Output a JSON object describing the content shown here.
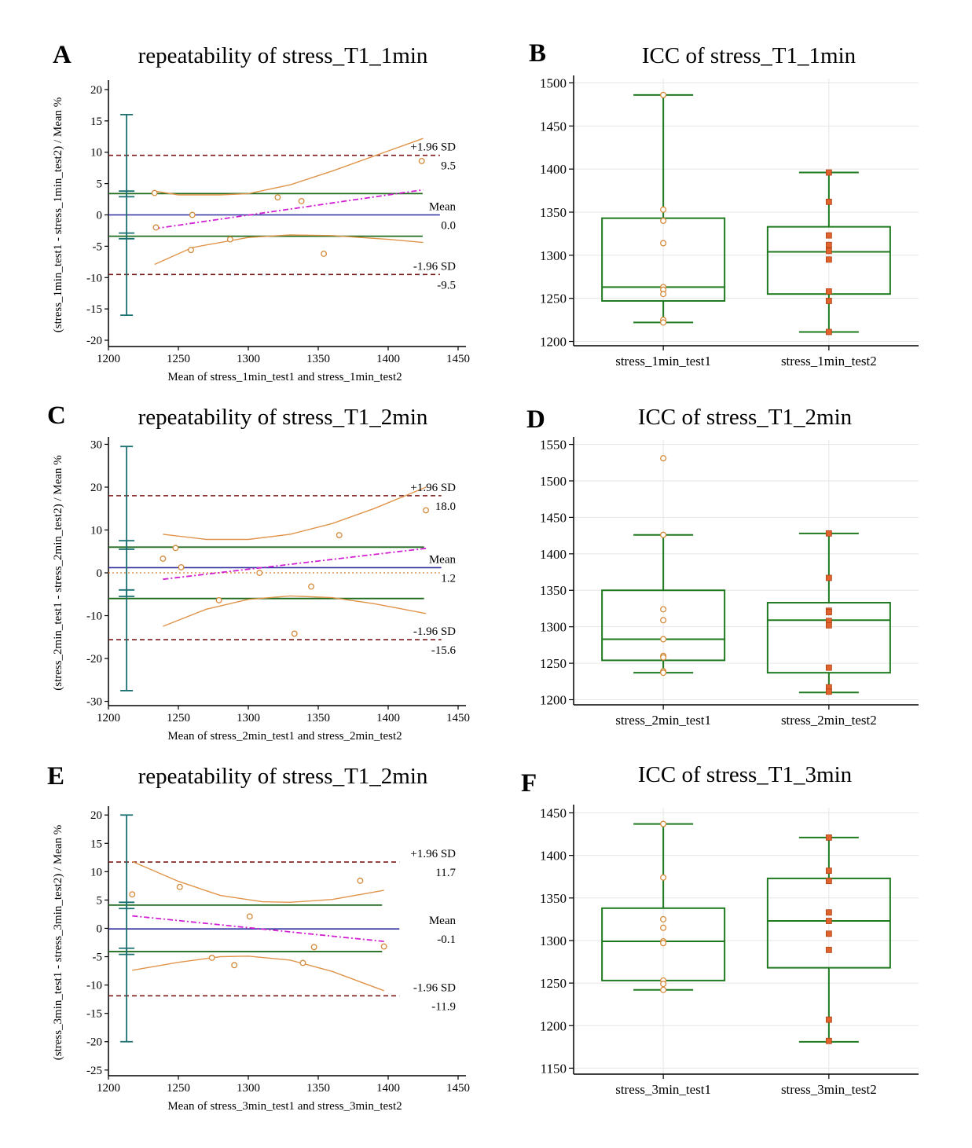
{
  "chart_data": [
    {
      "type": "scatter",
      "subtype": "bland-altman",
      "panel": "A",
      "title": "repeatability of stress_T1_1min",
      "xlabel": "Mean of stress_1min_test1 and stress_1min_test2",
      "ylabel": "(stress_1min_test1 - stress_1min_test2) / Mean %",
      "xlim": [
        1200,
        1450
      ],
      "ylim": [
        -21,
        21
      ],
      "xticks": [
        1200,
        1250,
        1300,
        1350,
        1400,
        1450
      ],
      "yticks": [
        -20,
        -15,
        -10,
        -5,
        0,
        5,
        10,
        15,
        20
      ],
      "points": [
        [
          1233,
          3.5
        ],
        [
          1234,
          -2
        ],
        [
          1260,
          0
        ],
        [
          1259,
          -5.6
        ],
        [
          1287,
          -3.9
        ],
        [
          1321,
          2.8
        ],
        [
          1338,
          2.2
        ],
        [
          1354,
          -6.2
        ],
        [
          1424,
          8.6
        ]
      ],
      "mean": 0.0,
      "upper_loa": 9.5,
      "lower_loa": -9.5,
      "mean_text": "0.0",
      "upper_text": "9.5",
      "lower_text": "-9.5",
      "mean_label": "Mean",
      "upper_label": "+1.96 SD",
      "lower_label": "-1.96 SD",
      "ci_upper": 3.4,
      "ci_lower": -3.4,
      "x_start": 1200,
      "x_end": 1437,
      "trend": [
        [
          1233,
          -2.2
        ],
        [
          1425,
          4
        ]
      ],
      "ci_curve_upper": [
        [
          1233,
          3.8
        ],
        [
          1250,
          3.2
        ],
        [
          1280,
          3.2
        ],
        [
          1300,
          3.4
        ],
        [
          1330,
          4.8
        ],
        [
          1360,
          7
        ],
        [
          1400,
          10.2
        ],
        [
          1425,
          12.2
        ]
      ],
      "ci_curve_lower": [
        [
          1233,
          -7.9
        ],
        [
          1260,
          -5.2
        ],
        [
          1300,
          -3.6
        ],
        [
          1330,
          -3.2
        ],
        [
          1360,
          -3.3
        ],
        [
          1400,
          -3.9
        ],
        [
          1425,
          -4.4
        ]
      ],
      "whisker_x": 1213,
      "error_bars": [
        {
          "x": 1213,
          "lo": -16,
          "hi": 16
        },
        {
          "x": 1213,
          "lo": 2.9,
          "hi": 3.8
        },
        {
          "x": 1213,
          "lo": -3.8,
          "hi": -2.9
        }
      ],
      "show_zero_dotted": false
    },
    {
      "type": "box",
      "panel": "B",
      "title": "ICC of stress_T1_1min",
      "categories": [
        "stress_1min_test1",
        "stress_1min_test2"
      ],
      "ylim": [
        1195,
        1505
      ],
      "yticks": [
        1200,
        1250,
        1300,
        1350,
        1400,
        1450,
        1500
      ],
      "boxes": [
        {
          "whisker_low": 1222,
          "q1": 1247,
          "median": 1263,
          "q3": 1343,
          "whisker_high": 1486,
          "points": [
            1486,
            1353,
            1340,
            1314,
            1263,
            1260,
            1255,
            1225,
            1222
          ],
          "marker": "circle"
        },
        {
          "whisker_low": 1211,
          "q1": 1255,
          "median": 1304,
          "q3": 1333,
          "whisker_high": 1396,
          "points": [
            1396,
            1362,
            1323,
            1312,
            1305,
            1295,
            1258,
            1247,
            1211
          ],
          "marker": "square"
        }
      ]
    },
    {
      "type": "scatter",
      "subtype": "bland-altman",
      "panel": "C",
      "title": "repeatability of stress_T1_2min",
      "xlabel": "Mean of stress_2min_test1 and stress_2min_test2",
      "ylabel": "(stress_2min_test1 - stress_2min_test2) / Mean %",
      "xlim": [
        1200,
        1450
      ],
      "ylim": [
        -31,
        31
      ],
      "xticks": [
        1200,
        1250,
        1300,
        1350,
        1400,
        1450
      ],
      "yticks": [
        -30,
        -20,
        -10,
        0,
        10,
        20,
        30
      ],
      "points": [
        [
          1239,
          3.3
        ],
        [
          1248,
          5.8
        ],
        [
          1252,
          1.3
        ],
        [
          1279,
          -6.4
        ],
        [
          1308,
          0
        ],
        [
          1333,
          -14.2
        ],
        [
          1345,
          -3.2
        ],
        [
          1365,
          8.8
        ],
        [
          1427,
          14.6
        ]
      ],
      "mean": 1.2,
      "upper_loa": 18.0,
      "lower_loa": -15.6,
      "mean_text": "1.2",
      "upper_text": "18.0",
      "lower_text": "-15.6",
      "mean_label": "Mean",
      "upper_label": "+1.96 SD",
      "lower_label": "-1.96 SD",
      "ci_upper": 6.0,
      "ci_lower": -6.0,
      "x_start": 1200,
      "x_end": 1438,
      "trend": [
        [
          1239,
          -1.5
        ],
        [
          1427,
          5.7
        ]
      ],
      "ci_curve_upper": [
        [
          1239,
          9
        ],
        [
          1270,
          7.8
        ],
        [
          1300,
          7.8
        ],
        [
          1330,
          9
        ],
        [
          1360,
          11.5
        ],
        [
          1390,
          15
        ],
        [
          1427,
          20
        ]
      ],
      "ci_curve_lower": [
        [
          1239,
          -12.5
        ],
        [
          1270,
          -8.5
        ],
        [
          1300,
          -6.2
        ],
        [
          1330,
          -5.4
        ],
        [
          1360,
          -5.8
        ],
        [
          1390,
          -7.2
        ],
        [
          1427,
          -9.5
        ]
      ],
      "whisker_x": 1213,
      "error_bars": [
        {
          "x": 1213,
          "lo": -27.5,
          "hi": 29.5
        },
        {
          "x": 1213,
          "lo": 5.5,
          "hi": 7.5
        },
        {
          "x": 1213,
          "lo": -5.5,
          "hi": -4
        }
      ],
      "show_zero_dotted": true
    },
    {
      "type": "box",
      "panel": "D",
      "title": "ICC of stress_T1_2min",
      "categories": [
        "stress_2min_test1",
        "stress_2min_test2"
      ],
      "ylim": [
        1193,
        1556
      ],
      "yticks": [
        1200,
        1250,
        1300,
        1350,
        1400,
        1450,
        1500,
        1550
      ],
      "boxes": [
        {
          "whisker_low": 1237,
          "q1": 1254,
          "median": 1283,
          "q3": 1350,
          "whisker_high": 1426,
          "points": [
            1531,
            1426,
            1324,
            1309,
            1283,
            1260,
            1258,
            1239,
            1237
          ],
          "marker": "circle"
        },
        {
          "whisker_low": 1210,
          "q1": 1237,
          "median": 1309,
          "q3": 1333,
          "whisker_high": 1428,
          "points": [
            1428,
            1367,
            1322,
            1320,
            1308,
            1302,
            1244,
            1217,
            1211
          ],
          "marker": "square"
        }
      ]
    },
    {
      "type": "scatter",
      "subtype": "bland-altman",
      "panel": "E",
      "title": "repeatability of stress_T1_2min",
      "xlabel": "Mean of stress_3min_test1 and stress_3min_test2",
      "ylabel": "(stress_3min_test1 - stress_3min_test2) / Mean %",
      "xlim": [
        1200,
        1450
      ],
      "ylim": [
        -26,
        21
      ],
      "xticks": [
        1200,
        1250,
        1300,
        1350,
        1400,
        1450
      ],
      "yticks": [
        -25,
        -20,
        -15,
        -10,
        -5,
        0,
        5,
        10,
        15,
        20
      ],
      "points": [
        [
          1217,
          6
        ],
        [
          1251,
          7.3
        ],
        [
          1274,
          -5.2
        ],
        [
          1290,
          -6.5
        ],
        [
          1301,
          2.1
        ],
        [
          1339,
          -6.1
        ],
        [
          1347,
          -3.3
        ],
        [
          1380,
          8.4
        ],
        [
          1397,
          -3.2
        ]
      ],
      "mean": -0.1,
      "upper_loa": 11.7,
      "lower_loa": -11.9,
      "mean_text": "-0.1",
      "upper_text": "11.7",
      "lower_text": "-11.9",
      "mean_label": "Mean",
      "upper_label": "+1.96 SD",
      "lower_label": "-1.96 SD",
      "ci_upper": 4.1,
      "ci_lower": -4.1,
      "x_start": 1200,
      "x_end": 1408,
      "trend": [
        [
          1217,
          2.2
        ],
        [
          1397,
          -2.3
        ]
      ],
      "ci_curve_upper": [
        [
          1217,
          11.8
        ],
        [
          1250,
          8.3
        ],
        [
          1280,
          5.8
        ],
        [
          1310,
          4.7
        ],
        [
          1330,
          4.6
        ],
        [
          1360,
          5.1
        ],
        [
          1397,
          6.7
        ]
      ],
      "ci_curve_lower": [
        [
          1217,
          -7.4
        ],
        [
          1250,
          -6
        ],
        [
          1280,
          -5
        ],
        [
          1300,
          -4.9
        ],
        [
          1330,
          -5.6
        ],
        [
          1360,
          -7.6
        ],
        [
          1397,
          -11
        ]
      ],
      "whisker_x": 1213,
      "error_bars": [
        {
          "x": 1213,
          "lo": -20,
          "hi": 20
        },
        {
          "x": 1213,
          "lo": 3.5,
          "hi": 4.6
        },
        {
          "x": 1213,
          "lo": -4.6,
          "hi": -3.5
        }
      ],
      "show_zero_dotted": false
    },
    {
      "type": "box",
      "panel": "F",
      "title": "ICC of stress_T1_3min",
      "categories": [
        "stress_3min_test1",
        "stress_3min_test2"
      ],
      "ylim": [
        1143,
        1456
      ],
      "yticks": [
        1150,
        1200,
        1250,
        1300,
        1350,
        1400,
        1450
      ],
      "boxes": [
        {
          "whisker_low": 1242,
          "q1": 1253,
          "median": 1299,
          "q3": 1338,
          "whisker_high": 1437,
          "points": [
            1437,
            1374,
            1325,
            1315,
            1299,
            1297,
            1253,
            1249,
            1242
          ],
          "marker": "circle"
        },
        {
          "whisker_low": 1181,
          "q1": 1268,
          "median": 1323,
          "q3": 1373,
          "whisker_high": 1421,
          "points": [
            1421,
            1382,
            1370,
            1333,
            1323,
            1308,
            1289,
            1207,
            1182
          ],
          "marker": "square"
        }
      ]
    }
  ],
  "colors": {
    "axis": "#000000",
    "mean_line": "#2e2e9e",
    "loa_line": "#7a1a1a",
    "ci_line": "#1e6b1e",
    "curve": "#e0944a",
    "trend": "#d21fd2",
    "whisker": "#1a7070",
    "point_stroke": "#d48a3a",
    "square_fill": "#e0622d",
    "square_stroke": "#b04416",
    "box": "#1f7a1f",
    "grid": "#e6e6e6",
    "zero_dotted": "#e0944a"
  }
}
